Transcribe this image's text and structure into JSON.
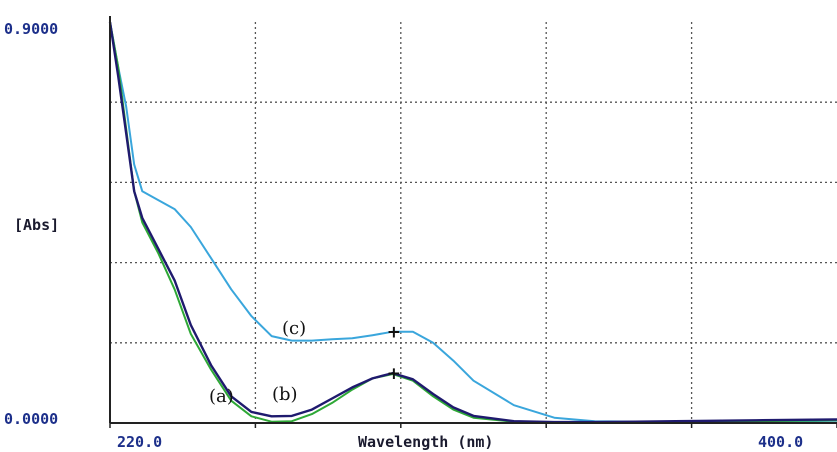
{
  "chart_data": {
    "type": "line",
    "title": "",
    "xlabel": "Wavelength (nm)",
    "ylabel": "[Abs]",
    "x_tick_labels": [
      "220.0",
      "400.0"
    ],
    "y_tick_labels": [
      "0.9000",
      "0.0000"
    ],
    "xlim": [
      220,
      400
    ],
    "ylim": [
      0,
      0.9
    ],
    "grid": true,
    "marker": {
      "x": 290,
      "label": "+"
    },
    "series": [
      {
        "name": "(a)",
        "color": "#2ea836",
        "x": [
          220,
          222,
          224,
          226,
          228,
          232,
          236,
          240,
          245,
          250,
          255,
          260,
          265,
          270,
          275,
          280,
          285,
          290,
          295,
          300,
          305,
          310,
          320,
          330,
          340,
          360,
          380,
          400
        ],
        "y": [
          0.9,
          0.8,
          0.66,
          0.52,
          0.45,
          0.38,
          0.3,
          0.2,
          0.12,
          0.05,
          0.015,
          0.003,
          0.004,
          0.02,
          0.045,
          0.075,
          0.1,
          0.11,
          0.095,
          0.06,
          0.03,
          0.012,
          0.003,
          0.001,
          0.0,
          0.002,
          0.004,
          0.006
        ]
      },
      {
        "name": "(b)",
        "color": "#1f1a6e",
        "x": [
          220,
          222,
          224,
          226,
          228,
          232,
          236,
          240,
          245,
          250,
          255,
          260,
          265,
          270,
          275,
          280,
          285,
          290,
          295,
          300,
          305,
          310,
          320,
          330,
          340,
          360,
          380,
          400
        ],
        "y": [
          0.9,
          0.78,
          0.65,
          0.52,
          0.46,
          0.39,
          0.32,
          0.22,
          0.13,
          0.06,
          0.025,
          0.015,
          0.016,
          0.03,
          0.055,
          0.08,
          0.1,
          0.112,
          0.098,
          0.065,
          0.035,
          0.016,
          0.004,
          0.002,
          0.002,
          0.004,
          0.006,
          0.008
        ]
      },
      {
        "name": "(c)",
        "color": "#3aa6dc",
        "x": [
          220,
          222,
          224,
          226,
          228,
          232,
          236,
          240,
          245,
          250,
          255,
          260,
          265,
          270,
          275,
          280,
          285,
          290,
          295,
          300,
          305,
          310,
          320,
          330,
          340,
          360,
          380,
          400
        ],
        "y": [
          0.9,
          0.8,
          0.71,
          0.58,
          0.52,
          0.5,
          0.48,
          0.44,
          0.37,
          0.3,
          0.24,
          0.195,
          0.185,
          0.185,
          0.188,
          0.19,
          0.197,
          0.205,
          0.205,
          0.18,
          0.14,
          0.095,
          0.04,
          0.012,
          0.004,
          0.002,
          0.003,
          0.005
        ]
      }
    ]
  }
}
